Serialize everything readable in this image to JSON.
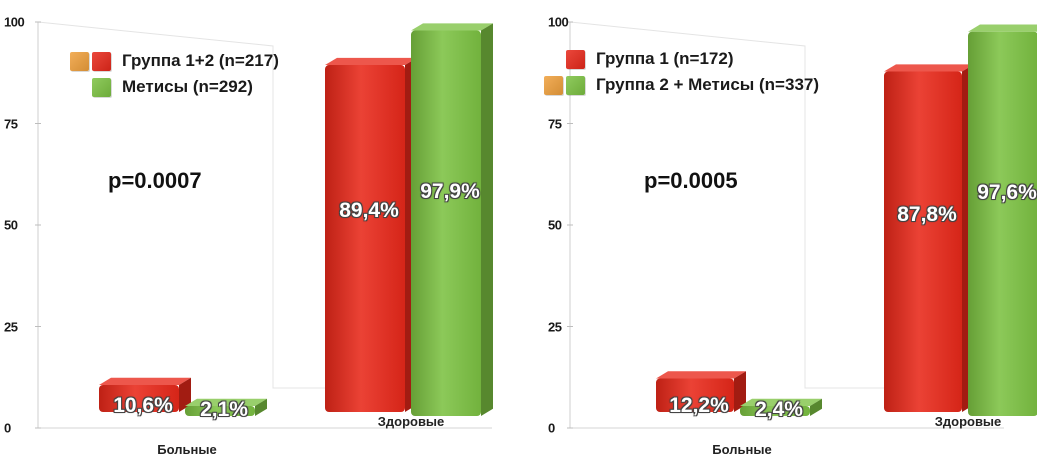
{
  "chart_data": [
    {
      "type": "bar",
      "categories": [
        "Больные",
        "Здоровые"
      ],
      "series": [
        {
          "name": "Группа 1+2 (n=217)",
          "values": [
            10.6,
            89.4
          ],
          "labels": [
            "10,6%",
            "89,4%"
          ],
          "color": "#e8281a"
        },
        {
          "name": "Метисы (n=292)",
          "values": [
            2.1,
            97.9
          ],
          "labels": [
            "2,1%",
            "97,9%"
          ],
          "color": "#7cc242"
        }
      ],
      "legend": [
        {
          "swatches": [
            "#f0a03c",
            "#e8281a"
          ],
          "label": "Группа 1+2 (n=217)"
        },
        {
          "swatches": [
            "",
            "#7cc242"
          ],
          "label": "Метисы (n=292)"
        }
      ],
      "annotation": "p=0.0007",
      "yticks": [
        "100",
        "75",
        "50",
        "25",
        "0"
      ],
      "ylim": [
        0,
        100
      ],
      "legend_position": "top-left",
      "grid": false
    },
    {
      "type": "bar",
      "categories": [
        "Больные",
        "Здоровые"
      ],
      "series": [
        {
          "name": "Группа 1 (n=172)",
          "values": [
            12.2,
            87.8
          ],
          "labels": [
            "12,2%",
            "87,8%"
          ],
          "color": "#e8281a"
        },
        {
          "name": "Группа 2 + Метисы (n=337)",
          "values": [
            2.4,
            97.6
          ],
          "labels": [
            "2,4%",
            "97,6%"
          ],
          "color": "#7cc242"
        }
      ],
      "legend": [
        {
          "swatches": [
            "",
            "#e8281a"
          ],
          "label": "Группа 1 (n=172)"
        },
        {
          "swatches": [
            "#f0a03c",
            "#7cc242"
          ],
          "label": "Группа 2 + Метисы (n=337)"
        }
      ],
      "annotation": "p=0.0005",
      "yticks": [
        "100",
        "75",
        "50",
        "25",
        "0"
      ],
      "ylim": [
        0,
        100
      ],
      "legend_position": "top-left",
      "grid": false
    }
  ]
}
